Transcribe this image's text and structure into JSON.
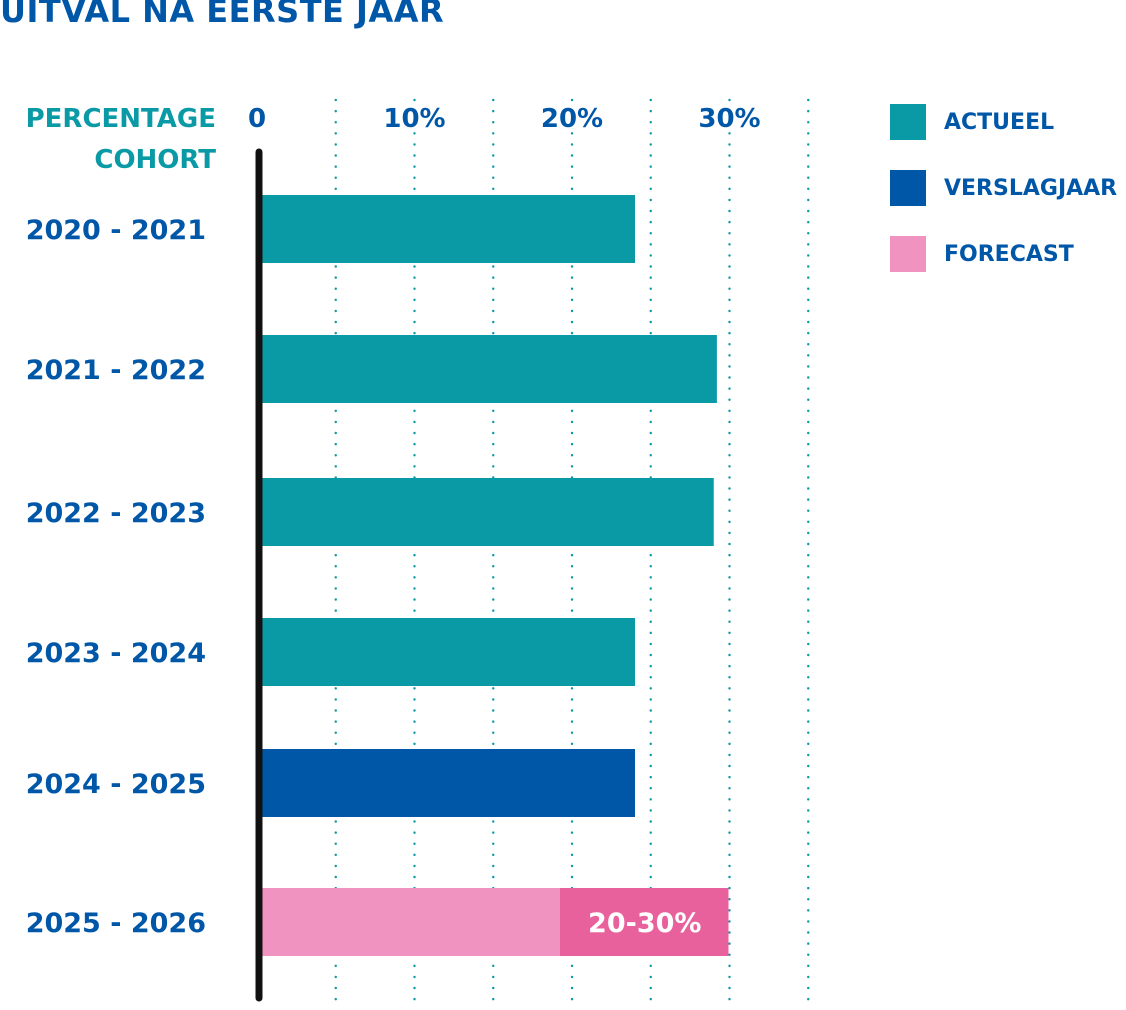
{
  "title": "UITVAL NA EERSTE JAAR",
  "colors": {
    "title": "#0057a8",
    "axis_title": "#0a9aa6",
    "actueel": "#0a9aa6",
    "verslagjaar": "#0057a8",
    "forecast_light": "#f193c0",
    "forecast_dark": "#e8619c",
    "grid": "#0a9aa6",
    "axis": "#111111"
  },
  "chart_data": {
    "type": "bar",
    "orientation": "horizontal",
    "title": "UITVAL NA EERSTE JAAR",
    "ylabel": "PERCENTAGE COHORT",
    "xlim": [
      0,
      35
    ],
    "xticks": [
      {
        "value": 0,
        "label": "0"
      },
      {
        "value": 10,
        "label": "10%"
      },
      {
        "value": 20,
        "label": "20%"
      },
      {
        "value": 30,
        "label": "30%"
      }
    ],
    "grid": "dotted vertical every 5%",
    "legend_position": "top-right",
    "categories": [
      "2020 - 2021",
      "2021 - 2022",
      "2022 - 2023",
      "2023 - 2024",
      "2024 - 2025",
      "2025 - 2026"
    ],
    "bars": [
      {
        "category": "2020 - 2021",
        "series": "ACTUEEL",
        "value": 24
      },
      {
        "category": "2021 - 2022",
        "series": "ACTUEEL",
        "value": 29.2
      },
      {
        "category": "2022 - 2023",
        "series": "ACTUEEL",
        "value": 29
      },
      {
        "category": "2023 - 2024",
        "series": "ACTUEEL",
        "value": 24
      },
      {
        "category": "2024 - 2025",
        "series": "VERSLAGJAAR",
        "value": 24
      },
      {
        "category": "2025 - 2026",
        "series": "FORECAST",
        "range": [
          20,
          30
        ],
        "value": 30,
        "label": "20-30%"
      }
    ],
    "series": [
      {
        "name": "ACTUEEL"
      },
      {
        "name": "VERSLAGJAAR"
      },
      {
        "name": "FORECAST"
      }
    ]
  },
  "axis_title_lines": [
    "PERCENTAGE",
    "COHORT"
  ],
  "legend": [
    {
      "label": "ACTUEEL",
      "color": "#0a9aa6"
    },
    {
      "label": "VERSLAGJAAR",
      "color": "#0057a8"
    },
    {
      "label": "FORECAST",
      "color": "#f193c0"
    }
  ]
}
